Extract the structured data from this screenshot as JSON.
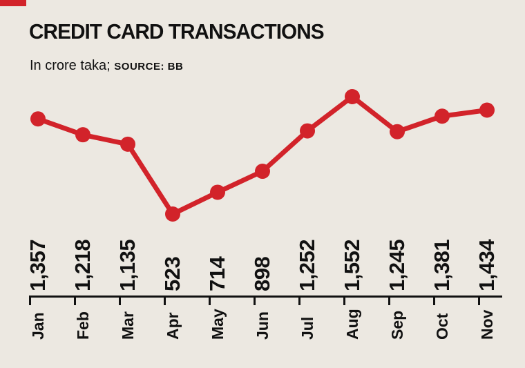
{
  "header": {
    "title": "CREDIT CARD TRANSACTIONS",
    "subtitle_unit": "In crore taka;",
    "subtitle_source": "SOURCE: BB"
  },
  "colors": {
    "accent_red": "#d2232a",
    "background": "#ece8e1",
    "text": "#111111"
  },
  "chart_data": {
    "type": "line",
    "title": "CREDIT CARD TRANSACTIONS",
    "subtitle": "In crore taka; SOURCE: BB",
    "categories": [
      "Jan",
      "Feb",
      "Mar",
      "Apr",
      "May",
      "Jun",
      "Jul",
      "Aug",
      "Sep",
      "Oct",
      "Nov"
    ],
    "values": [
      1357,
      1218,
      1135,
      523,
      714,
      898,
      1252,
      1552,
      1245,
      1381,
      1434
    ],
    "value_labels": [
      "1,357",
      "1,218",
      "1,135",
      "523",
      "714",
      "898",
      "1,252",
      "1,552",
      "1,245",
      "1,381",
      "1,434"
    ],
    "xlabel": "",
    "ylabel": "In crore taka",
    "ylim": [
      450,
      1600
    ],
    "grid": false,
    "legend": "none",
    "series_color": "#d2232a",
    "marker": "circle",
    "label_rotation_deg": 90
  }
}
